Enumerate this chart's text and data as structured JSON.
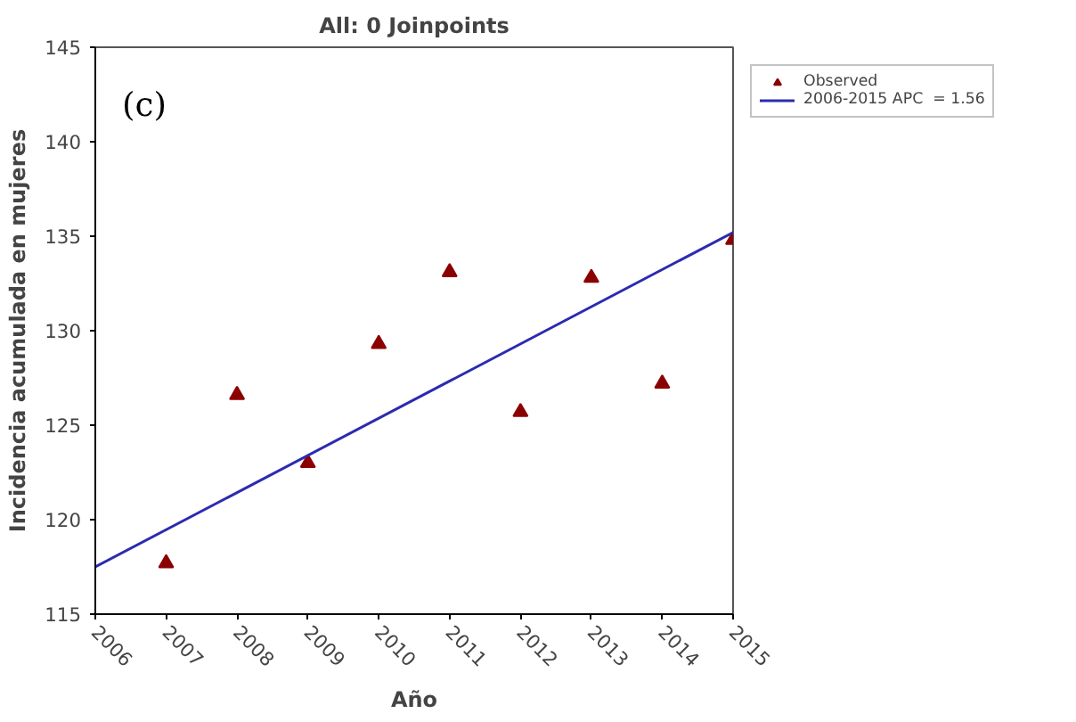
{
  "chart_data": {
    "type": "scatter",
    "title": "All: 0 Joinpoints",
    "xlabel": "Año",
    "ylabel": "Incidencia acumulada en mujeres",
    "x": [
      2007,
      2008,
      2009,
      2010,
      2011,
      2012,
      2013,
      2014,
      2015
    ],
    "series": [
      {
        "name": "Observed",
        "marker": "triangle",
        "color": "#8b0000",
        "values": [
          117.7,
          126.6,
          123.0,
          129.3,
          133.1,
          125.7,
          132.8,
          127.2,
          134.8
        ]
      },
      {
        "name": "2006-2015 APC  = 1.56",
        "type": "line",
        "marker": "none",
        "color": "#2b2bb0",
        "x": [
          2006,
          2015
        ],
        "values": [
          117.5,
          135.2
        ]
      }
    ],
    "xlim": [
      2006,
      2015
    ],
    "ylim": [
      115,
      145
    ],
    "xticks": [
      2006,
      2007,
      2008,
      2009,
      2010,
      2011,
      2012,
      2013,
      2014,
      2015
    ],
    "yticks": [
      115,
      120,
      125,
      130,
      135,
      140,
      145
    ],
    "annotations": [
      "(c)"
    ],
    "grid": false,
    "legend": "top right"
  }
}
